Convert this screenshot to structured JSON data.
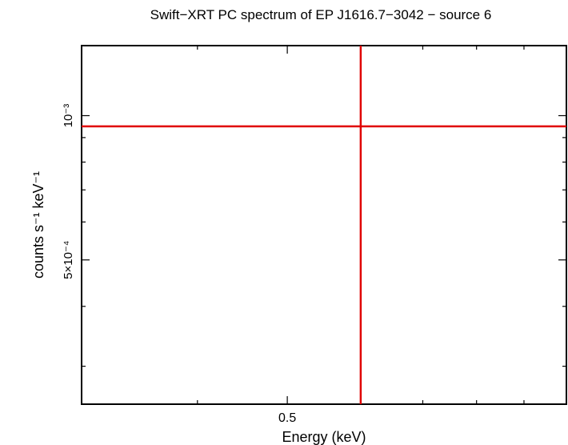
{
  "chart_data": {
    "type": "scatter",
    "title": "Swift−XRT PC spectrum of EP J1616.7−3042 − source 6",
    "xlabel": "Energy (keV)",
    "ylabel": "counts s⁻¹ keV⁻¹",
    "x_scale": "log",
    "y_scale": "log",
    "xlim": [
      0.3,
      1.0
    ],
    "ylim": [
      0.00025,
      0.0014
    ],
    "x_ticks": [
      {
        "value": 0.5,
        "label": "0.5"
      }
    ],
    "y_ticks": [
      {
        "value": 0.0005,
        "label": "5×10⁻⁴"
      },
      {
        "value": 0.001,
        "label": "10⁻³"
      }
    ],
    "grid": false,
    "series": [
      {
        "color": "#e00000",
        "points": [
          {
            "x": 0.6,
            "y": 0.00095,
            "x_err": [
              0.3,
              1.0
            ],
            "y_err": [
              0.00025,
              0.0014
            ]
          }
        ]
      }
    ]
  }
}
